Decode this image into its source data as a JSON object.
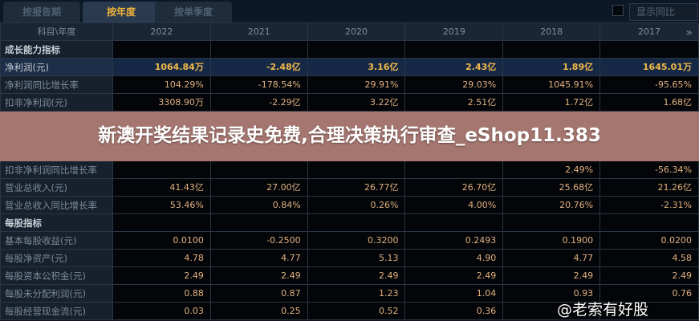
{
  "tabs": [
    {
      "label": "按报告期"
    },
    {
      "label": "按年度",
      "active": true
    },
    {
      "label": "按单季度"
    }
  ],
  "show_yoy": {
    "label": "显示同比",
    "checked": false
  },
  "table": {
    "header": [
      "科目\\年度",
      "2022",
      "2021",
      "2020",
      "2019",
      "2018",
      "2017"
    ],
    "rows": [
      {
        "label": "成长能力指标",
        "type": "section",
        "values": [
          "",
          "",
          "",
          "",
          "",
          ""
        ]
      },
      {
        "label": "净利润(元)",
        "type": "highlight",
        "values": [
          "1064.84万",
          "-2.48亿",
          "3.16亿",
          "2.43亿",
          "1.89亿",
          "1645.01万"
        ]
      },
      {
        "label": "净利润同比增长率",
        "values": [
          "104.29%",
          "-178.54%",
          "29.91%",
          "29.03%",
          "1045.91%",
          "-95.65%"
        ]
      },
      {
        "label": "扣非净利润(元)",
        "values": [
          "3308.90万",
          "-2.29亿",
          "3.22亿",
          "2.51亿",
          "1.72亿",
          "1.68亿"
        ]
      },
      {
        "label": "扣非净利润同比增长率",
        "values": [
          "",
          "",
          "",
          "",
          "2.49%",
          "-56.34%"
        ]
      },
      {
        "label": "营业总收入(元)",
        "values": [
          "41.43亿",
          "27.00亿",
          "26.77亿",
          "26.70亿",
          "25.68亿",
          "21.26亿"
        ]
      },
      {
        "label": "营业总收入同比增长率",
        "values": [
          "53.46%",
          "0.84%",
          "0.26%",
          "4.00%",
          "20.76%",
          "-2.31%"
        ]
      },
      {
        "label": "每股指标",
        "type": "section",
        "values": [
          "",
          "",
          "",
          "",
          "",
          ""
        ]
      },
      {
        "label": "基本每股收益(元)",
        "values": [
          "0.0100",
          "-0.2500",
          "0.3200",
          "0.2493",
          "0.1900",
          "0.0200"
        ]
      },
      {
        "label": "每股净资产(元)",
        "values": [
          "4.78",
          "4.77",
          "5.13",
          "4.90",
          "4.77",
          "4.58"
        ]
      },
      {
        "label": "每股资本公积金(元)",
        "values": [
          "2.49",
          "2.49",
          "2.49",
          "2.49",
          "2.49",
          "2.49"
        ]
      },
      {
        "label": "每股未分配利润(元)",
        "values": [
          "0.88",
          "0.87",
          "1.23",
          "1.04",
          "0.93",
          "0.76"
        ]
      },
      {
        "label": "每股经营现金流(元)",
        "values": [
          "0.03",
          "0.25",
          "0.52",
          "0.36",
          "",
          ""
        ]
      }
    ]
  },
  "more_icon": "double-chevron-right-icon",
  "more_glyph": "»",
  "overlay_title": "新澳开奖结果记录史免费,合理决策执行审查_eShop11.383",
  "watermark": "@老索有好股"
}
